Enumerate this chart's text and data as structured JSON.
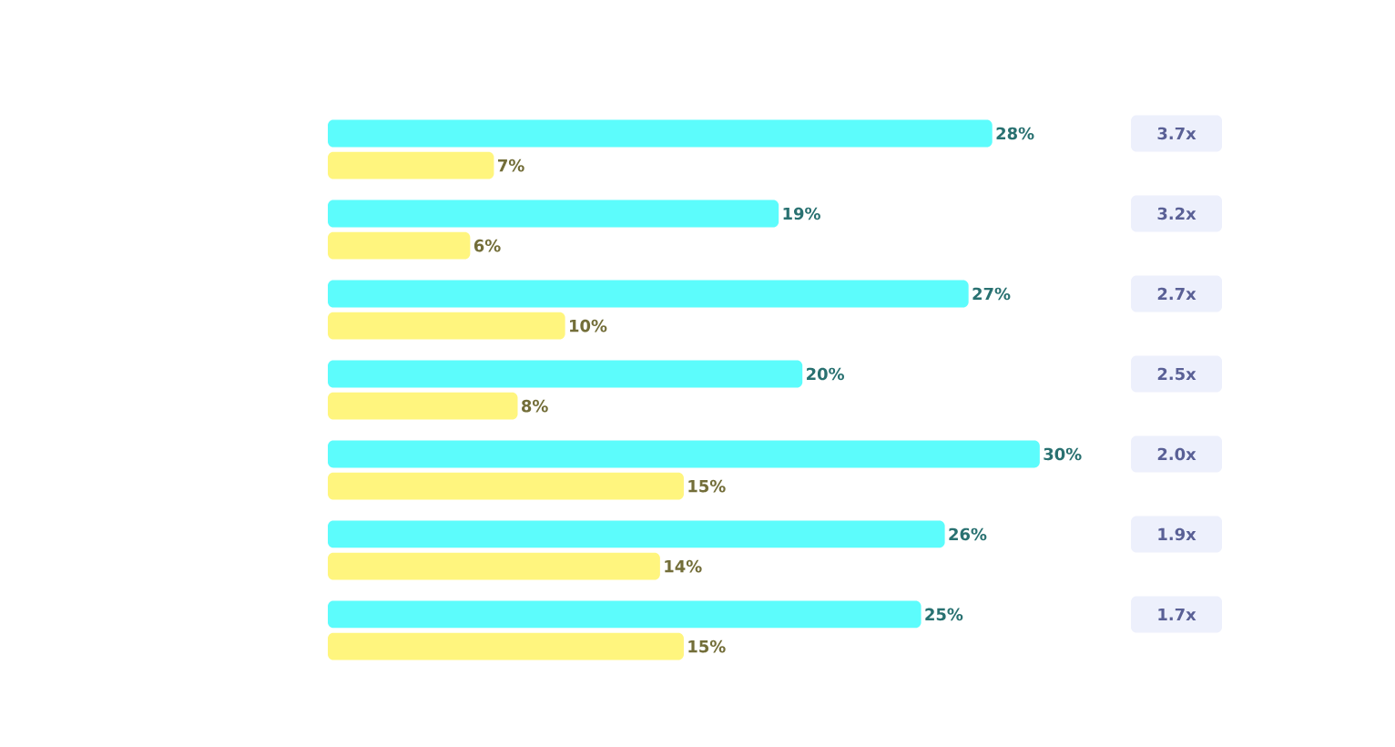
{
  "chart_data": {
    "type": "bar",
    "orientation": "horizontal",
    "categories": [
      null,
      null,
      null,
      null,
      null,
      null,
      null
    ],
    "series": [
      {
        "color": "#5cfcfc",
        "values": [
          28,
          19,
          27,
          20,
          30,
          26,
          25
        ],
        "value_labels": [
          "28%",
          "19%",
          "27%",
          "20%",
          "30%",
          "26%",
          "25%"
        ]
      },
      {
        "color": "#fff57e",
        "values": [
          7,
          6,
          10,
          8,
          15,
          14,
          15
        ],
        "value_labels": [
          "7%",
          "6%",
          "10%",
          "8%",
          "15%",
          "14%",
          "15%"
        ]
      }
    ],
    "annotations": [
      "3.7x",
      "3.2x",
      "2.7x",
      "2.5x",
      "2.0x",
      "1.9x",
      "1.7x"
    ]
  }
}
